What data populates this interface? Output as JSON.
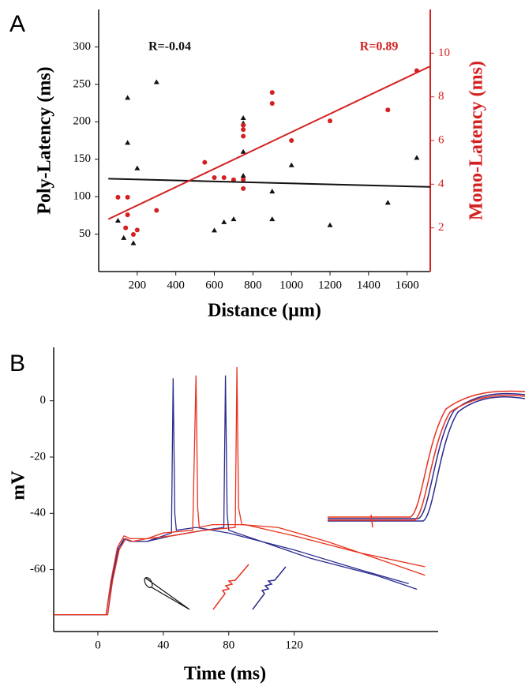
{
  "chart_data": [
    {
      "type": "scatter",
      "panel_label": "A",
      "x_label": "Distance (µm)",
      "y_label": "Poly-Latency (ms)",
      "y2_label": "Mono-Latency (ms)",
      "y2_color": "#d42020",
      "xlim": [
        0,
        1720
      ],
      "xticks": [
        200,
        400,
        600,
        800,
        1000,
        1200,
        1400,
        1600
      ],
      "ylim": [
        0,
        350
      ],
      "yticks": [
        50,
        100,
        150,
        200,
        250,
        300
      ],
      "y2lim": [
        0,
        12
      ],
      "y2ticks": [
        2,
        4,
        6,
        8,
        10
      ],
      "annotations": [
        {
          "text": "R=-0.04",
          "color": "#111111"
        },
        {
          "text": "R=0.89",
          "color": "#d42020"
        }
      ],
      "series": [
        {
          "color": "#111111",
          "marker": "triangle",
          "axis": "y",
          "x": [
            100,
            130,
            150,
            150,
            180,
            200,
            300,
            600,
            650,
            700,
            750,
            750,
            750,
            750,
            900,
            900,
            1000,
            1200,
            1500,
            1650
          ],
          "values": [
            68,
            45,
            232,
            172,
            38,
            138,
            253,
            55,
            66,
            70,
            205,
            198,
            160,
            128,
            107,
            70,
            142,
            62,
            92,
            152
          ]
        },
        {
          "color": "#d42020",
          "marker": "circle",
          "axis": "y2",
          "x": [
            100,
            140,
            150,
            150,
            180,
            200,
            300,
            550,
            600,
            650,
            700,
            750,
            750,
            750,
            750,
            750,
            900,
            900,
            1000,
            1200,
            1500,
            1650
          ],
          "values": [
            3.4,
            2.0,
            2.6,
            3.4,
            1.7,
            1.9,
            2.8,
            5.0,
            4.3,
            4.3,
            4.2,
            6.7,
            6.5,
            6.2,
            4.2,
            3.8,
            8.2,
            7.7,
            6.0,
            6.9,
            7.4,
            9.2
          ]
        },
        {
          "color": "#111111",
          "mode": "line",
          "axis": "y",
          "x": [
            50,
            1720
          ],
          "values": [
            124,
            113
          ]
        },
        {
          "color": "#d42020",
          "mode": "line",
          "axis": "y2",
          "x": [
            50,
            1720
          ],
          "values": [
            2.4,
            9.4
          ]
        }
      ]
    },
    {
      "type": "line",
      "panel_label": "B",
      "x_label": "Time (ms)",
      "y_label": "mV",
      "xlim": [
        -27,
        208
      ],
      "xticks": [
        0,
        40,
        80,
        120
      ],
      "ylim": [
        -82,
        19
      ],
      "yticks": [
        0,
        -20,
        -40,
        -60
      ],
      "series": [
        {
          "color": "#2b2b8f",
          "x": [
            -27,
            5,
            8,
            12,
            16,
            20,
            30,
            40,
            45,
            46,
            47,
            48,
            60,
            80,
            120,
            160,
            190
          ],
          "values": [
            -76,
            -76,
            -65,
            -53,
            -49,
            -50,
            -50,
            -48,
            -47,
            8,
            -40,
            -46,
            -45,
            -47,
            -53,
            -60,
            -65
          ]
        },
        {
          "color": "#e8321e",
          "x": [
            -27,
            5,
            8,
            12,
            16,
            20,
            30,
            40,
            58,
            60,
            61,
            62,
            70,
            90,
            120,
            160,
            200
          ],
          "values": [
            -76,
            -76,
            -64,
            -52,
            -48,
            -49,
            -49,
            -47,
            -46,
            9,
            -38,
            -45,
            -44,
            -44,
            -48,
            -54,
            -59
          ]
        },
        {
          "color": "#2b2b8f",
          "x": [
            -27,
            6,
            9,
            13,
            17,
            21,
            30,
            45,
            65,
            77,
            78,
            79,
            80,
            100,
            130,
            170,
            195
          ],
          "values": [
            -76,
            -76,
            -63,
            -52,
            -49,
            -50,
            -50,
            -48,
            -46,
            -45,
            9,
            -40,
            -46,
            -50,
            -56,
            -62,
            -67
          ]
        },
        {
          "color": "#e8321e",
          "x": [
            -27,
            6,
            9,
            13,
            17,
            21,
            30,
            45,
            65,
            84,
            85,
            86,
            88,
            110,
            140,
            170,
            200
          ],
          "values": [
            -76,
            -76,
            -64,
            -53,
            -49,
            -50,
            -49,
            -48,
            -46,
            -45,
            12,
            -38,
            -44,
            -45,
            -50,
            -56,
            -62
          ]
        }
      ]
    }
  ]
}
